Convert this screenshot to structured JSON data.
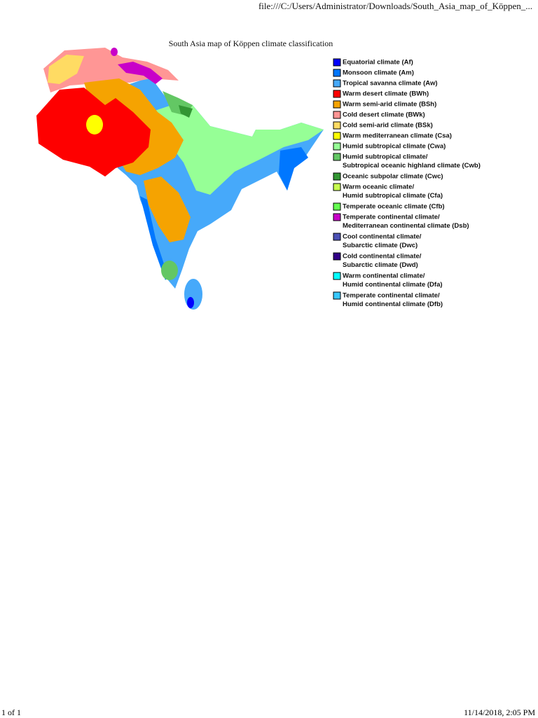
{
  "header": {
    "url": "file:///C:/Users/Administrator/Downloads/South_Asia_map_of_Köppen_..."
  },
  "title": "South Asia map of Köppen climate classification",
  "legend": [
    {
      "color": "#0000fe",
      "lines": [
        "Equatorial climate (Af)"
      ]
    },
    {
      "color": "#0077ff",
      "lines": [
        "Monsoon climate (Am)"
      ]
    },
    {
      "color": "#46a9fa",
      "lines": [
        "Tropical savanna climate (Aw)"
      ]
    },
    {
      "color": "#fe0000",
      "lines": [
        "Warm desert climate (BWh)"
      ]
    },
    {
      "color": "#f5a301",
      "lines": [
        "Warm semi-arid climate (BSh)"
      ]
    },
    {
      "color": "#ff9695",
      "lines": [
        "Cold desert climate (BWk)"
      ]
    },
    {
      "color": "#ffdb63",
      "lines": [
        "Cold semi-arid climate (BSk)"
      ]
    },
    {
      "color": "#ffff00",
      "lines": [
        "Warm mediterranean climate (Csa)"
      ]
    },
    {
      "color": "#96ff96",
      "lines": [
        "Humid subtropical climate (Cwa)"
      ]
    },
    {
      "color": "#63c764",
      "lines": [
        "Humid subtropical climate/",
        "Subtropical oceanic highland climate (Cwb)"
      ]
    },
    {
      "color": "#329633",
      "lines": [
        "Oceanic subpolar climate (Cwc)"
      ]
    },
    {
      "color": "#c8ff50",
      "lines": [
        "Warm oceanic climate/",
        "Humid subtropical climate (Cfa)"
      ]
    },
    {
      "color": "#64ff50",
      "lines": [
        "Temperate oceanic climate (Cfb)"
      ]
    },
    {
      "color": "#c800c8",
      "lines": [
        "Temperate continental climate/",
        "Mediterranean continental climate (Dsb)"
      ]
    },
    {
      "color": "#4b50b4",
      "lines": [
        "Cool continental climate/",
        "Subarctic climate (Dwc)"
      ]
    },
    {
      "color": "#320087",
      "lines": [
        "Cold continental climate/",
        "Subarctic climate (Dwd)"
      ]
    },
    {
      "color": "#00ffff",
      "lines": [
        "Warm continental climate/",
        "Humid continental climate (Dfa)"
      ]
    },
    {
      "color": "#37c8ff",
      "lines": [
        "Temperate continental climate/",
        "Humid continental climate (Dfb)"
      ]
    }
  ],
  "footer": {
    "page": "1 of 1",
    "datetime": "11/14/2018, 2:05 PM"
  }
}
